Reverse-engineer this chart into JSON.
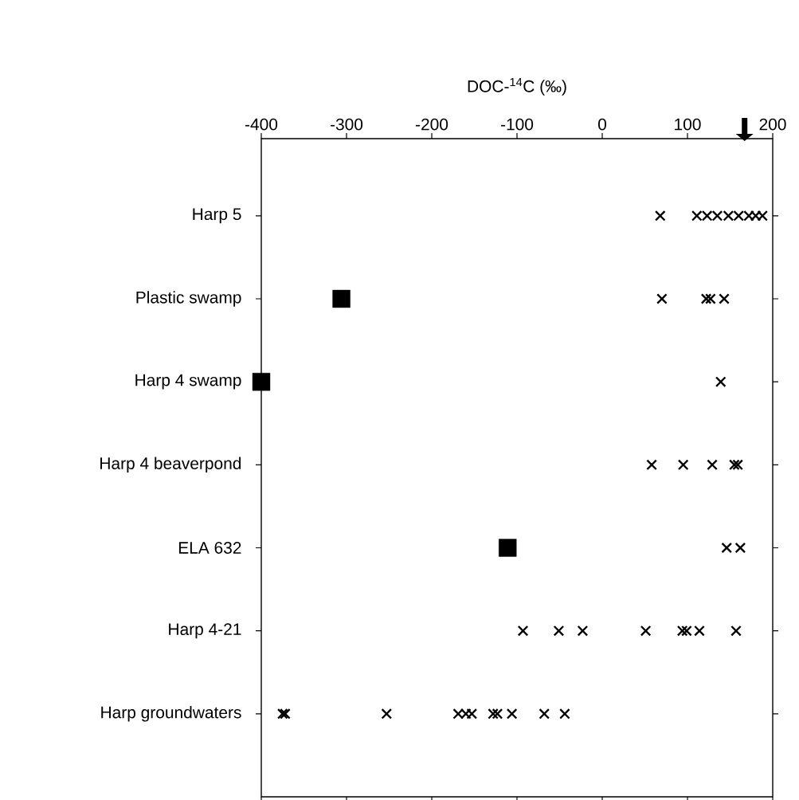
{
  "chart_data": {
    "type": "scatter",
    "orientation": "horizontal",
    "xlabel": "DOC-$^{14}$C (‰)",
    "categories": [
      "Harp 5",
      "Plastic swamp",
      "Harp 4 swamp",
      "Harp 4 beaverpond",
      "ELA 632",
      "Harp 4-21",
      "Harp groundwaters"
    ],
    "xlim": [
      -400,
      200
    ],
    "xticks": [
      -400,
      -300,
      -200,
      -100,
      0,
      100,
      200
    ],
    "series": [
      {
        "color": "#000000",
        "marker": "cross",
        "values": [
          68,
          70,
          139,
          58,
          146,
          -93,
          -375
        ]
      },
      {
        "color": "#000000",
        "marker": "cross",
        "values": [
          111,
          122,
          null,
          95,
          162,
          -51,
          -372
        ]
      },
      {
        "color": "#000000",
        "marker": "cross",
        "values": [
          123,
          127,
          null,
          129,
          null,
          -23,
          -253
        ]
      },
      {
        "color": "#000000",
        "marker": "cross",
        "values": [
          135,
          143,
          null,
          155,
          null,
          51,
          -169
        ]
      },
      {
        "color": "#000000",
        "marker": "cross",
        "values": [
          148,
          null,
          null,
          159,
          null,
          94,
          -160
        ]
      },
      {
        "color": "#000000",
        "marker": "cross",
        "values": [
          160,
          null,
          null,
          null,
          null,
          99,
          -153
        ]
      },
      {
        "color": "#000000",
        "marker": "cross",
        "values": [
          172,
          null,
          null,
          null,
          null,
          114,
          -128
        ]
      },
      {
        "color": "#000000",
        "marker": "cross",
        "values": [
          180,
          null,
          null,
          null,
          null,
          157,
          -123
        ]
      },
      {
        "color": "#000000",
        "marker": "cross",
        "values": [
          188,
          null,
          null,
          null,
          null,
          null,
          -106
        ]
      },
      {
        "color": "#000000",
        "marker": "cross",
        "values": [
          null,
          null,
          null,
          null,
          null,
          null,
          -68
        ]
      },
      {
        "color": "#000000",
        "marker": "cross",
        "values": [
          null,
          null,
          null,
          null,
          null,
          null,
          -44
        ]
      },
      {
        "color": "#000000",
        "marker": "square",
        "values": [
          null,
          -306,
          -400,
          null,
          -111,
          null,
          null
        ]
      }
    ]
  }
}
